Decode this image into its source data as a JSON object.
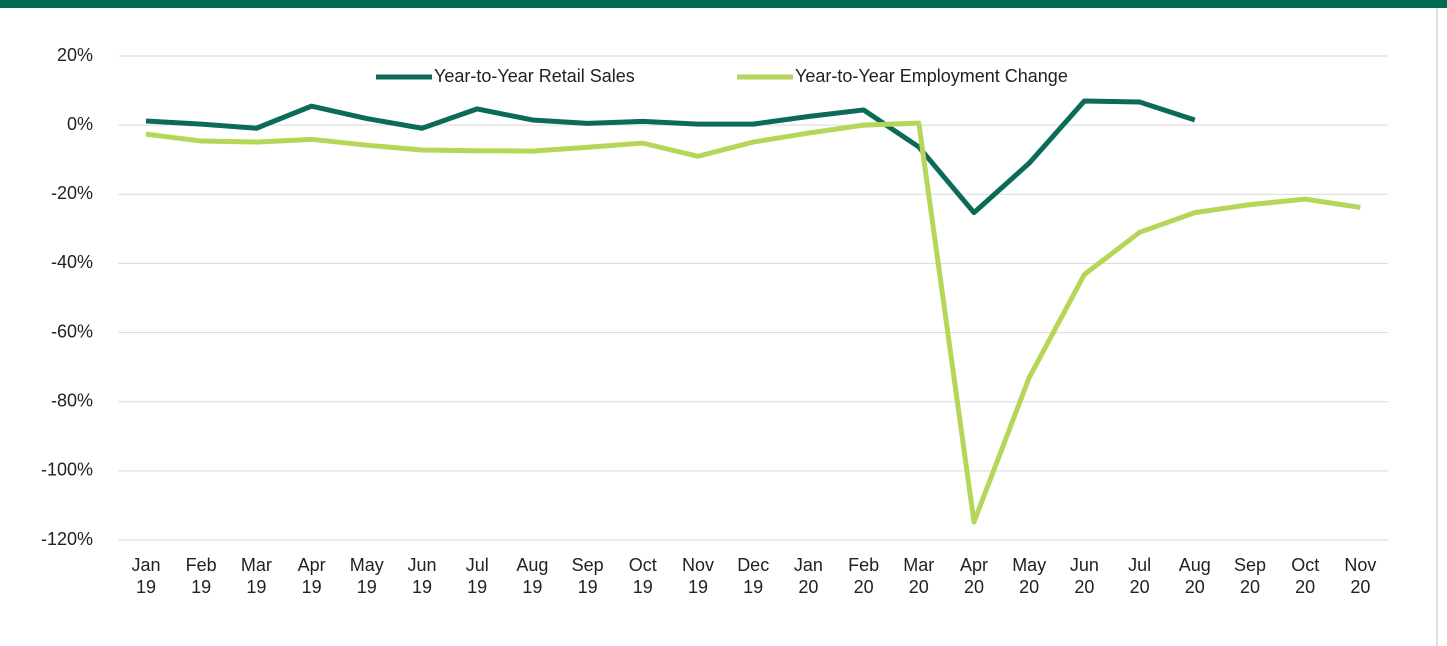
{
  "chart_data": {
    "type": "line",
    "categories": [
      "Jan 19",
      "Feb 19",
      "Mar 19",
      "Apr 19",
      "May 19",
      "Jun 19",
      "Jul 19",
      "Aug 19",
      "Sep 19",
      "Oct 19",
      "Nov 19",
      "Dec 19",
      "Jan 20",
      "Feb 20",
      "Mar 20",
      "Apr 20",
      "May 20",
      "Jun 20",
      "Jul 20",
      "Aug 20",
      "Sep 20",
      "Oct 20",
      "Nov 20"
    ],
    "series": [
      {
        "name": "Year-to-Year Retail Sales",
        "color": "#0b6b58",
        "values": [
          1.2,
          0.3,
          -0.9,
          5.5,
          1.9,
          -0.9,
          4.7,
          1.5,
          0.5,
          1.1,
          0.3,
          0.3,
          2.5,
          4.4,
          -6.3,
          -25.3,
          -11,
          7,
          6.7,
          1.5,
          null,
          null,
          null
        ]
      },
      {
        "name": "Year-to-Year Employment Change",
        "color": "#b6d65a",
        "values": [
          -2.6,
          -4.6,
          -4.9,
          -4.1,
          -5.8,
          -7.2,
          -7.4,
          -7.5,
          -6.4,
          -5.2,
          -9,
          -4.9,
          -2.3,
          0,
          0.6,
          -114.8,
          -73,
          -43.2,
          -31,
          -25.3,
          -23,
          -21.4,
          -23.8
        ]
      }
    ],
    "ylim": [
      -120,
      20
    ],
    "yticks": [
      {
        "value": 20,
        "label": "20%"
      },
      {
        "value": 0,
        "label": "0%"
      },
      {
        "value": -20,
        "label": "-20%"
      },
      {
        "value": -40,
        "label": "-40%"
      },
      {
        "value": -60,
        "label": "-60%"
      },
      {
        "value": -80,
        "label": "-80%"
      },
      {
        "value": -100,
        "label": "-100%"
      },
      {
        "value": -120,
        "label": "-120%"
      }
    ],
    "grid": true,
    "legend": "top"
  }
}
